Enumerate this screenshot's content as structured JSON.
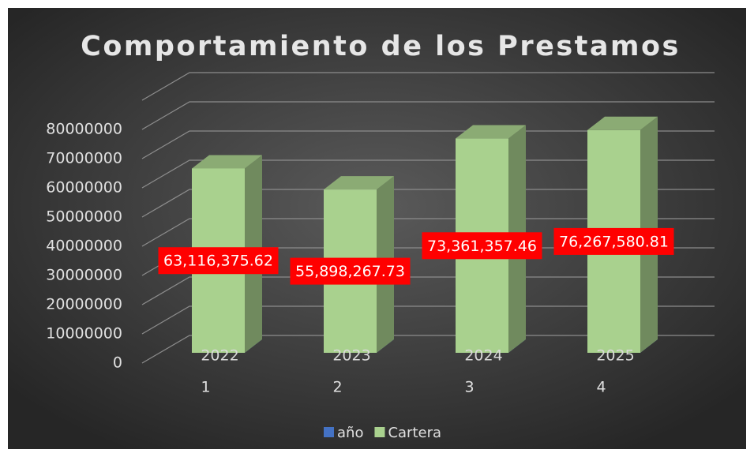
{
  "chart_data": {
    "type": "bar3d",
    "title": "Comportamiento de los Prestamos",
    "categories": [
      "1",
      "2",
      "3",
      "4"
    ],
    "series": [
      {
        "name": "año",
        "color": "#4472c4",
        "values": [
          2022,
          2023,
          2024,
          2025
        ]
      },
      {
        "name": "Cartera",
        "color": "#a9d18e",
        "values": [
          63116375.62,
          55898267.73,
          73361357.46,
          76267580.81
        ],
        "value_labels": [
          "63,116,375.62",
          "55,898,267.73",
          "73,361,357.46",
          "76,267,580.81"
        ]
      }
    ],
    "ylim": [
      0,
      90000000
    ],
    "yticks": [
      0,
      10000000,
      20000000,
      30000000,
      40000000,
      50000000,
      60000000,
      70000000,
      80000000
    ],
    "grid": true,
    "legend": "bottom"
  }
}
